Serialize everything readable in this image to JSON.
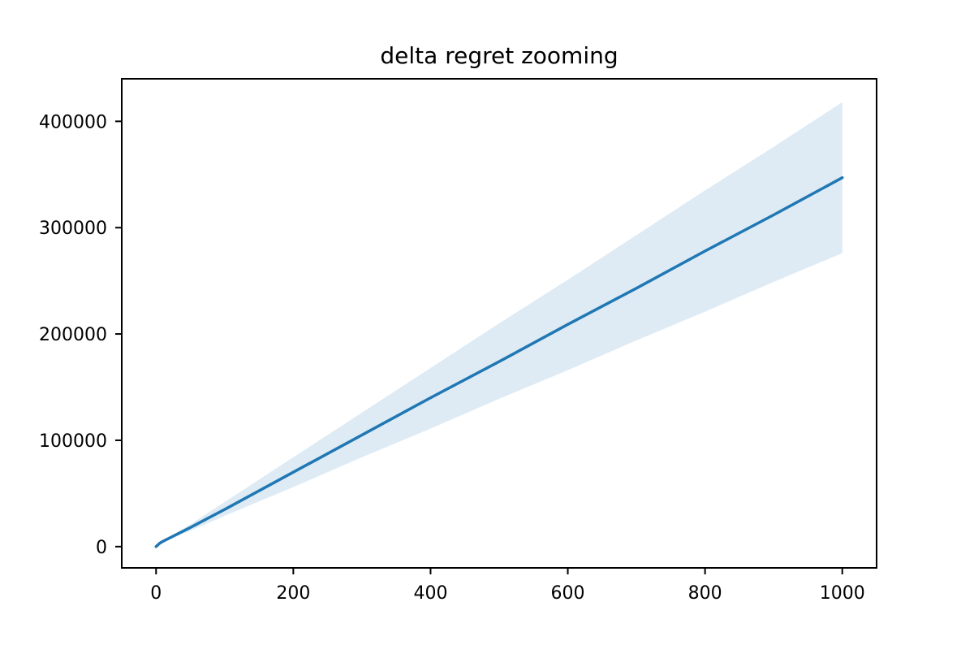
{
  "chart_data": {
    "type": "line",
    "title": "delta regret zooming",
    "xlabel": "",
    "ylabel": "",
    "xlim": [
      -50,
      1050
    ],
    "ylim": [
      -20000,
      440000
    ],
    "xticks": [
      0,
      200,
      400,
      600,
      800,
      1000
    ],
    "yticks": [
      0,
      100000,
      200000,
      300000,
      400000
    ],
    "grid": false,
    "legend": "none",
    "colors": {
      "line": "#1f77b4",
      "band": "#1f77b4"
    },
    "series": [
      {
        "x": [
          0,
          5,
          10,
          50,
          100,
          200,
          300,
          400,
          500,
          600,
          700,
          800,
          900,
          1000
        ],
        "y": [
          0,
          3000,
          5000,
          18000,
          35000,
          70000,
          105000,
          140000,
          174000,
          209000,
          243000,
          278000,
          312000,
          347000
        ],
        "lower": [
          0,
          2500,
          4500,
          15000,
          29000,
          56000,
          84000,
          111000,
          139000,
          166000,
          194000,
          221000,
          249000,
          276000
        ],
        "upper": [
          0,
          3500,
          5500,
          21000,
          42000,
          84000,
          126000,
          168000,
          210000,
          251000,
          293000,
          335000,
          376000,
          418000
        ]
      }
    ]
  }
}
